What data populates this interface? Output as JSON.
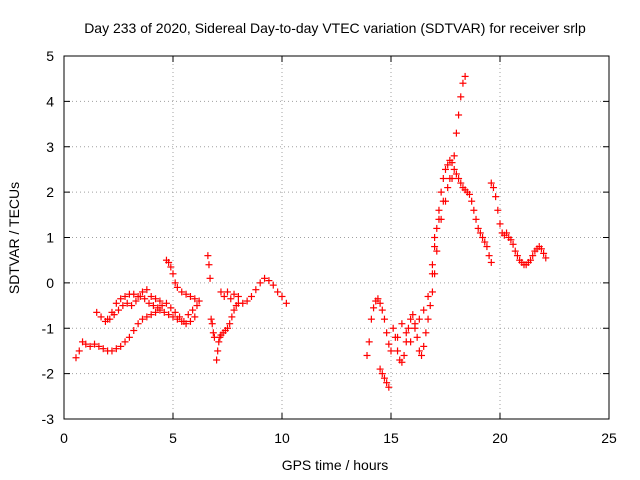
{
  "chart_data": {
    "type": "scatter",
    "title": "Day 233 of 2020, Sidereal Day-to-day VTEC variation (SDTVAR) for receiver srlp",
    "xlabel": "GPS time / hours",
    "ylabel": "SDTVAR / TECUs",
    "xlim": [
      0,
      25
    ],
    "ylim": [
      -3,
      5
    ],
    "x_ticks": [
      0,
      5,
      10,
      15,
      20,
      25
    ],
    "y_ticks": [
      -3,
      -2,
      -1,
      0,
      1,
      2,
      3,
      4,
      5
    ],
    "grid": true,
    "marker": "+",
    "color": "#ff0000",
    "series": [
      {
        "x": [
          0.55,
          0.7,
          0.85,
          1.0,
          1.2,
          1.4,
          1.6,
          1.8,
          2.0,
          2.2,
          2.4,
          2.6,
          2.8,
          3.0,
          3.2,
          3.4,
          3.6,
          3.8,
          4.0,
          4.2,
          4.4,
          4.6,
          4.8,
          5.0,
          5.2,
          5.4,
          5.6,
          5.8,
          6.0
        ],
        "y": [
          -1.65,
          -1.5,
          -1.3,
          -1.35,
          -1.4,
          -1.35,
          -1.4,
          -1.45,
          -1.5,
          -1.5,
          -1.45,
          -1.4,
          -1.3,
          -1.2,
          -1.05,
          -0.9,
          -0.8,
          -0.75,
          -0.7,
          -0.65,
          -0.6,
          -0.65,
          -0.7,
          -0.75,
          -0.8,
          -0.85,
          -0.9,
          -0.85,
          -0.75
        ]
      },
      {
        "x": [
          1.5,
          1.7,
          1.9,
          2.1,
          2.3,
          2.5,
          2.7,
          2.9,
          3.1,
          3.3,
          3.5,
          3.7,
          3.9,
          4.1,
          4.3,
          4.5,
          4.7,
          4.9,
          5.1,
          5.3,
          5.5,
          5.7,
          5.9,
          6.1
        ],
        "y": [
          -0.65,
          -0.75,
          -0.85,
          -0.8,
          -0.7,
          -0.6,
          -0.5,
          -0.45,
          -0.5,
          -0.4,
          -0.3,
          -0.35,
          -0.45,
          -0.5,
          -0.55,
          -0.5,
          -0.45,
          -0.55,
          -0.65,
          -0.75,
          -0.85,
          -0.7,
          -0.6,
          -0.5
        ]
      },
      {
        "x": [
          2.0,
          2.2,
          2.4,
          2.6,
          2.8,
          3.0,
          3.2,
          3.4,
          3.6,
          3.8,
          4.0,
          4.2,
          4.4
        ],
        "y": [
          -0.8,
          -0.65,
          -0.45,
          -0.35,
          -0.3,
          -0.25,
          -0.25,
          -0.3,
          -0.2,
          -0.15,
          -0.3,
          -0.35,
          -0.4
        ]
      },
      {
        "x": [
          4.7,
          4.8,
          4.9,
          5.0,
          5.1,
          5.2,
          5.4,
          5.6,
          5.8,
          6.0,
          6.2
        ],
        "y": [
          0.5,
          0.45,
          0.35,
          0.2,
          0.0,
          -0.1,
          -0.2,
          -0.25,
          -0.3,
          -0.35,
          -0.4
        ]
      },
      {
        "x": [
          6.6,
          6.65,
          6.7,
          6.75,
          6.8,
          6.85,
          6.9
        ],
        "y": [
          0.6,
          0.4,
          0.1,
          -0.8,
          -0.9,
          -1.1,
          -1.2
        ]
      },
      {
        "x": [
          7.0,
          7.05,
          7.1,
          7.15,
          7.2,
          7.3,
          7.4,
          7.5,
          7.6,
          7.7,
          7.8,
          7.9,
          8.0
        ],
        "y": [
          -1.7,
          -1.5,
          -1.3,
          -1.2,
          -1.15,
          -1.1,
          -1.05,
          -1.0,
          -0.9,
          -0.75,
          -0.6,
          -0.5,
          -0.45
        ]
      },
      {
        "x": [
          7.2,
          7.35,
          7.5,
          7.65,
          7.8,
          8.0,
          8.2,
          8.4,
          8.6,
          8.8,
          9.0,
          9.2,
          9.4,
          9.6,
          9.8,
          10.0,
          10.2
        ],
        "y": [
          -0.2,
          -0.3,
          -0.2,
          -0.35,
          -0.25,
          -0.3,
          -0.45,
          -0.4,
          -0.3,
          -0.15,
          0.0,
          0.1,
          0.05,
          -0.05,
          -0.2,
          -0.3,
          -0.45
        ]
      },
      {
        "x": [
          13.9,
          14.0,
          14.1,
          14.2,
          14.3,
          14.4,
          14.5,
          14.6,
          14.7,
          14.8,
          14.9,
          15.0
        ],
        "y": [
          -1.6,
          -1.3,
          -0.8,
          -0.55,
          -0.4,
          -0.35,
          -0.45,
          -0.6,
          -0.8,
          -1.1,
          -1.35,
          -1.5
        ]
      },
      {
        "x": [
          14.5,
          14.6,
          14.7,
          14.8,
          14.9
        ],
        "y": [
          -1.9,
          -2.0,
          -2.1,
          -2.2,
          -2.3
        ]
      },
      {
        "x": [
          15.1,
          15.2,
          15.3,
          15.4,
          15.5,
          15.6,
          15.7,
          15.8,
          15.9,
          16.0,
          16.1,
          16.2,
          16.3,
          16.4,
          16.5,
          16.6,
          16.7,
          16.8,
          16.9,
          17.0
        ],
        "y": [
          -1.0,
          -1.2,
          -1.5,
          -1.7,
          -1.75,
          -1.6,
          -1.3,
          -1.0,
          -0.8,
          -0.7,
          -0.9,
          -1.2,
          -1.5,
          -1.6,
          -1.4,
          -1.1,
          -0.8,
          -0.5,
          -0.2,
          0.2
        ]
      },
      {
        "x": [
          15.3,
          15.5,
          15.7,
          15.9,
          16.1,
          16.3,
          16.5,
          16.7,
          16.9,
          17.1,
          17.3,
          17.5,
          17.7,
          17.9,
          18.0,
          18.1,
          18.2,
          18.3,
          18.4
        ],
        "y": [
          -1.2,
          -0.9,
          -1.1,
          -1.3,
          -1.0,
          -0.8,
          -0.6,
          -0.3,
          0.2,
          0.7,
          1.4,
          1.8,
          2.3,
          2.8,
          3.3,
          3.7,
          4.1,
          4.4,
          4.55
        ]
      },
      {
        "x": [
          16.9,
          17.0,
          17.1,
          17.2,
          17.3,
          17.4,
          17.5,
          17.6,
          17.7,
          17.8,
          17.9,
          18.0,
          18.1,
          18.2,
          18.3,
          18.4,
          18.5,
          18.6,
          18.7,
          18.8,
          18.9,
          19.0,
          19.1,
          19.2,
          19.3,
          19.4,
          19.5,
          19.6
        ],
        "y": [
          0.4,
          0.8,
          1.2,
          1.6,
          2.0,
          2.3,
          2.5,
          2.6,
          2.7,
          2.65,
          2.5,
          2.4,
          2.3,
          2.2,
          2.1,
          2.05,
          2.0,
          1.95,
          1.8,
          1.6,
          1.4,
          1.2,
          1.1,
          1.0,
          0.9,
          0.8,
          0.6,
          0.45
        ]
      },
      {
        "x": [
          17.0,
          17.2,
          17.4,
          17.6,
          17.8
        ],
        "y": [
          1.0,
          1.4,
          1.8,
          2.1,
          2.3
        ]
      },
      {
        "x": [
          19.6,
          19.7,
          19.8,
          19.9,
          20.0,
          20.1,
          20.2,
          20.3,
          20.4,
          20.5,
          20.6,
          20.7,
          20.8,
          20.9,
          21.0,
          21.1,
          21.2,
          21.3,
          21.4,
          21.5,
          21.6,
          21.7,
          21.8,
          21.9,
          22.0,
          22.1
        ],
        "y": [
          2.2,
          2.1,
          1.9,
          1.6,
          1.3,
          1.1,
          1.05,
          1.1,
          1.0,
          0.95,
          0.85,
          0.7,
          0.6,
          0.5,
          0.45,
          0.4,
          0.4,
          0.45,
          0.5,
          0.6,
          0.7,
          0.75,
          0.8,
          0.75,
          0.65,
          0.55
        ]
      }
    ]
  }
}
